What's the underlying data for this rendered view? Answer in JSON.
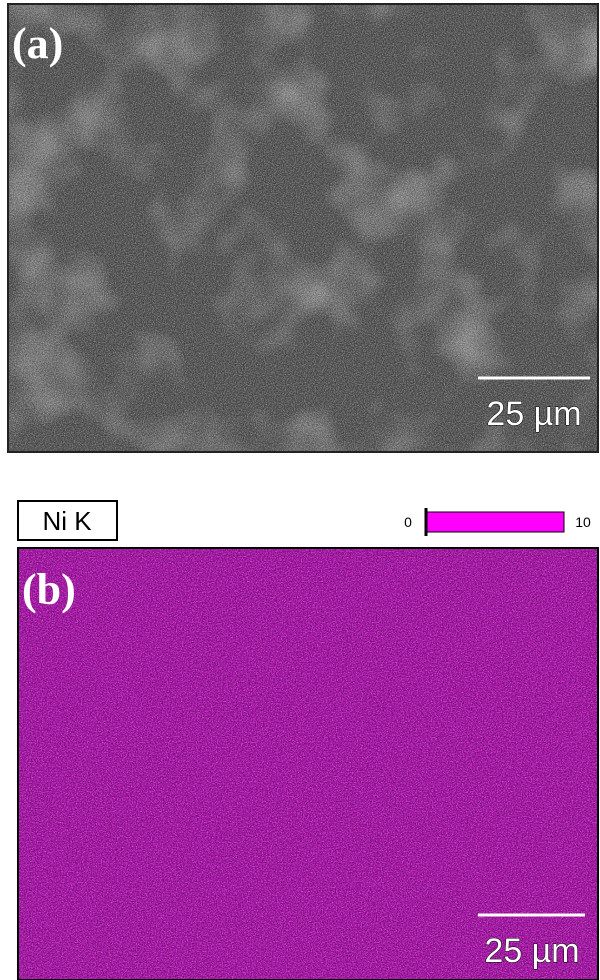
{
  "panel_a": {
    "label": "(a)",
    "scale_bar": "25 µm"
  },
  "panel_b": {
    "label": "(b)",
    "element": "Ni K",
    "color_scale": {
      "min": 0,
      "max": 10
    },
    "scale_bar": "25 µm"
  }
}
